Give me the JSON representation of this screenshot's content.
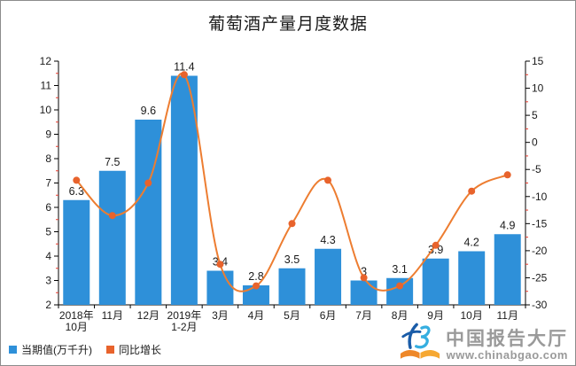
{
  "title": "葡萄酒产量月度数据",
  "legend": {
    "items": [
      {
        "label": "当期值(万千升)",
        "color": "#2E90D9"
      },
      {
        "label": "同比增长",
        "color": "#E8632C"
      }
    ]
  },
  "watermark": {
    "brand": "中国报告大厅",
    "site": "www.chinabgao.com"
  },
  "colors": {
    "bar": "#2E90D9",
    "line": "#ED7D31",
    "marker": "#E8632C",
    "axis": "#000000",
    "minor_tick": "#E8392B",
    "text": "#1A1A1A",
    "watermark_text": "#9A9A9A"
  },
  "chart_data": {
    "type": "bar",
    "combo": [
      "bar",
      "line"
    ],
    "title": "葡萄酒产量月度数据",
    "categories": [
      "2018年\n10月",
      "11月",
      "12月",
      "2019年\n1-2月",
      "3月",
      "4月",
      "5月",
      "6月",
      "7月",
      "8月",
      "9月",
      "10月",
      "11月"
    ],
    "series": [
      {
        "name": "当期值(万千升)",
        "type": "bar",
        "yaxis": "left",
        "color": "#2E90D9",
        "values": [
          6.3,
          7.5,
          9.6,
          11.4,
          3.4,
          2.8,
          3.5,
          4.3,
          3,
          3.1,
          3.9,
          4.2,
          4.9
        ],
        "data_labels_visible": true
      },
      {
        "name": "同比增长",
        "type": "line",
        "smooth": true,
        "yaxis": "right",
        "color": "#ED7D31",
        "values": [
          -7,
          -13.5,
          -7.5,
          12.5,
          -22.5,
          -26.5,
          -15,
          -7,
          -25,
          -26.5,
          -19,
          -9,
          -6
        ],
        "note": "line values in percent, estimated from right axis gridlines (no data labels shown)"
      }
    ],
    "left_axis": {
      "min": 2,
      "max": 12,
      "major_step": 1,
      "minor_step": 0.5,
      "ticks": [
        2,
        3,
        4,
        5,
        6,
        7,
        8,
        9,
        10,
        11,
        12
      ]
    },
    "right_axis": {
      "min": -30,
      "max": 15,
      "major_step": 5,
      "minor_step": 2.5,
      "ticks": [
        -30,
        -25,
        -20,
        -15,
        -10,
        -5,
        0,
        5,
        10,
        15
      ]
    },
    "grid": false,
    "legend_position": "bottom-left"
  }
}
